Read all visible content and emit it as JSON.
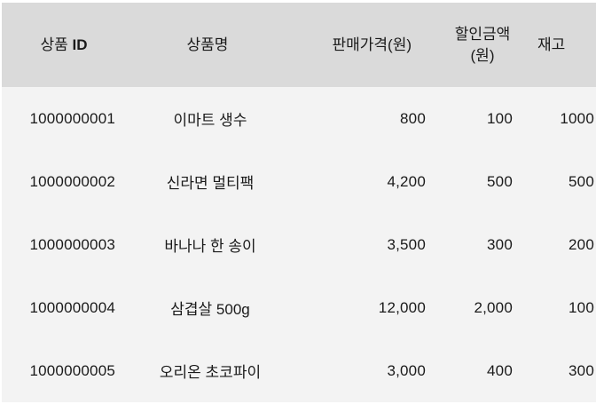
{
  "table": {
    "headers": {
      "product_id_prefix": "상품 ",
      "product_id_suffix": "ID",
      "product_name": "상품명",
      "sale_price": "판매가격(원)",
      "discount": "할인금액(원)",
      "stock": "재고"
    },
    "rows": [
      {
        "product_id": "1000000001",
        "product_name": "이마트 생수",
        "sale_price": "800",
        "discount": "100",
        "stock": "1000"
      },
      {
        "product_id": "1000000002",
        "product_name": "신라면 멀티팩",
        "sale_price": "4,200",
        "discount": "500",
        "stock": "500"
      },
      {
        "product_id": "1000000003",
        "product_name": "바나나 한 송이",
        "sale_price": "3,500",
        "discount": "300",
        "stock": "200"
      },
      {
        "product_id": "1000000004",
        "product_name": "삼겹살 500g",
        "sale_price": "12,000",
        "discount": "2,000",
        "stock": "100"
      },
      {
        "product_id": "1000000005",
        "product_name": "오리온 초코파이",
        "sale_price": "3,000",
        "discount": "400",
        "stock": "300"
      }
    ]
  }
}
